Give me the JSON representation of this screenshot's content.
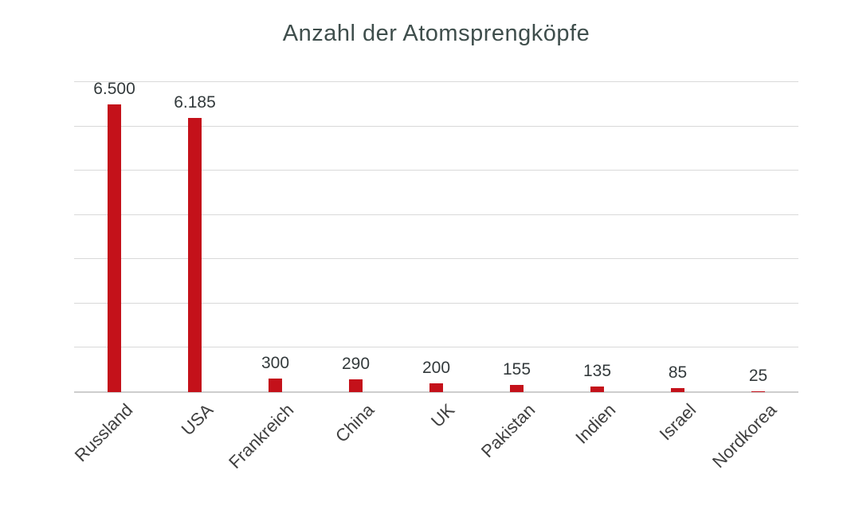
{
  "chart_data": {
    "type": "bar",
    "title": "Anzahl der Atomsprengköpfe",
    "categories": [
      "Russland",
      "USA",
      "Frankreich",
      "China",
      "UK",
      "Pakistan",
      "Indien",
      "Israel",
      "Nordkorea"
    ],
    "values": [
      6500,
      6185,
      300,
      290,
      200,
      155,
      135,
      85,
      25
    ],
    "value_labels": [
      "6.500",
      "6.185",
      "300",
      "290",
      "200",
      "155",
      "135",
      "85",
      "25"
    ],
    "xlabel": "",
    "ylabel": "",
    "ylim": [
      0,
      7000
    ],
    "gridline_step": 1000,
    "grid": true,
    "legend": false,
    "y_axis_tick_labels_visible": false,
    "colors": {
      "bar": "#C4111A",
      "gridline": "#D9D9D9",
      "axis_line": "#CDCDCD",
      "title_text": "#3F4E4C",
      "value_label_text": "#333A3C",
      "category_label_text": "#3F3F3F",
      "background": "#FFFFFF"
    }
  }
}
